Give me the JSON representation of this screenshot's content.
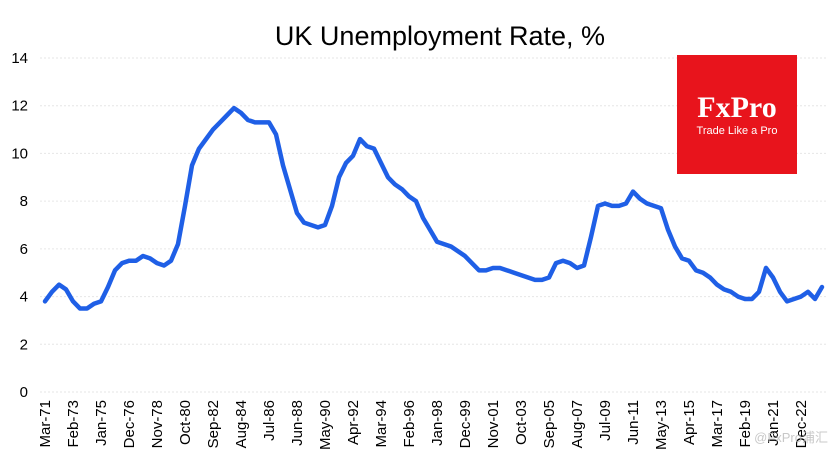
{
  "chart_data": {
    "type": "line",
    "title": "UK Unemployment  Rate, %",
    "categories": [
      "Mar-71",
      null,
      null,
      null,
      "Feb-73",
      null,
      null,
      null,
      "Jan-75",
      null,
      null,
      null,
      "Dec-76",
      null,
      null,
      null,
      "Nov-78",
      null,
      null,
      null,
      "Oct-80",
      null,
      null,
      null,
      "Sep-82",
      null,
      null,
      null,
      "Aug-84",
      null,
      null,
      null,
      "Jul-86",
      null,
      null,
      null,
      "Jun-88",
      null,
      null,
      null,
      "May-90",
      null,
      null,
      null,
      "Apr-92",
      null,
      null,
      null,
      "Mar-94",
      null,
      null,
      null,
      "Feb-96",
      null,
      null,
      null,
      "Jan-98",
      null,
      null,
      null,
      "Dec-99",
      null,
      null,
      null,
      "Nov-01",
      null,
      null,
      null,
      "Oct-03",
      null,
      null,
      null,
      "Sep-05",
      null,
      null,
      null,
      "Aug-07",
      null,
      null,
      null,
      "Jul-09",
      null,
      null,
      null,
      "Jun-11",
      null,
      null,
      null,
      "May-13",
      null,
      null,
      null,
      "Apr-15",
      null,
      null,
      null,
      "Mar-17",
      null,
      null,
      null,
      "Feb-19",
      null,
      null,
      null,
      "Jan-21",
      null,
      null,
      null,
      "Dec-22",
      null,
      null,
      null
    ],
    "series": [
      {
        "name": "UK Unemployment Rate",
        "color": "#1f5fe6",
        "values": [
          3.8,
          4.2,
          4.5,
          4.3,
          3.8,
          3.5,
          3.5,
          3.7,
          3.8,
          4.4,
          5.1,
          5.4,
          5.5,
          5.5,
          5.7,
          5.6,
          5.4,
          5.3,
          5.5,
          6.2,
          7.8,
          9.5,
          10.2,
          10.6,
          11.0,
          11.3,
          11.6,
          11.9,
          11.7,
          11.4,
          11.3,
          11.3,
          11.3,
          10.8,
          9.5,
          8.5,
          7.5,
          7.1,
          7.0,
          6.9,
          7.0,
          7.8,
          9.0,
          9.6,
          9.9,
          10.6,
          10.3,
          10.2,
          9.6,
          9.0,
          8.7,
          8.5,
          8.2,
          8.0,
          7.3,
          6.8,
          6.3,
          6.2,
          6.1,
          5.9,
          5.7,
          5.4,
          5.1,
          5.1,
          5.2,
          5.2,
          5.1,
          5.0,
          4.9,
          4.8,
          4.7,
          4.7,
          4.8,
          5.4,
          5.5,
          5.4,
          5.2,
          5.3,
          6.5,
          7.8,
          7.9,
          7.8,
          7.8,
          7.9,
          8.4,
          8.1,
          7.9,
          7.8,
          7.7,
          6.8,
          6.1,
          5.6,
          5.5,
          5.1,
          5.0,
          4.8,
          4.5,
          4.3,
          4.2,
          4.0,
          3.9,
          3.9,
          4.2,
          5.2,
          4.8,
          4.2,
          3.8,
          3.9,
          4.0,
          4.2,
          3.9,
          4.4
        ]
      }
    ],
    "ylim": [
      0,
      14
    ],
    "yticks": [
      0,
      2,
      4,
      6,
      8,
      10,
      12,
      14
    ],
    "grid": true,
    "logo": {
      "brand": "FxPro",
      "slogan": "Trade Like a Pro",
      "color": "#e8141c"
    },
    "watermark": "@FxPro浦汇"
  }
}
